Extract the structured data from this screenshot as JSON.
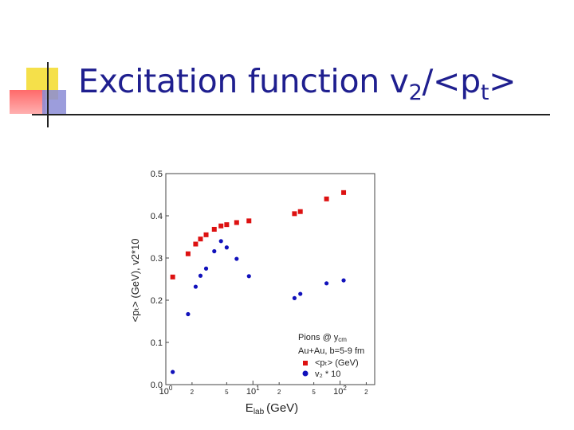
{
  "slide": {
    "title_main": "Excitation function v",
    "title_sub1": "2",
    "title_mid": "/<p",
    "title_sub2": "t",
    "title_end": ">"
  },
  "chart_data": {
    "type": "scatter",
    "x_scale": "log",
    "xlim": [
      1,
      250
    ],
    "ylim": [
      0,
      0.5
    ],
    "grid": false,
    "legend_position": "bottom-right",
    "ylabel": "<pₜ> (GeV), v2*10",
    "xlabel": "E_lab (GeV)",
    "xlabel_main": "E",
    "xlabel_sub": "lab",
    "xlabel_unit": "(GeV)",
    "y_ticks": [
      "0.0",
      "0.1",
      "0.2",
      "0.3",
      "0.4",
      "0.5"
    ],
    "y_tick_values": [
      0,
      0.1,
      0.2,
      0.3,
      0.4,
      0.5
    ],
    "x_ticks": [
      {
        "value": 1,
        "base": "10",
        "exp": "0"
      },
      {
        "value": 2,
        "label": "2"
      },
      {
        "value": 5,
        "label": "5"
      },
      {
        "value": 10,
        "base": "10",
        "exp": "1"
      },
      {
        "value": 20,
        "label": "2"
      },
      {
        "value": 50,
        "label": "5"
      },
      {
        "value": 100,
        "base": "10",
        "exp": "2"
      },
      {
        "value": 200,
        "label": "2"
      }
    ],
    "legend": {
      "title": "Pions @ y",
      "title_sub": "cm",
      "subtitle": "Au+Au, b=5-9 fm",
      "entries": [
        "<pₜ> (GeV)",
        "v₂ * 10"
      ]
    },
    "series": [
      {
        "name": "<pₜ> (GeV)",
        "color": "#dd1111",
        "marker": "square",
        "x": [
          1.2,
          1.8,
          2.2,
          2.5,
          2.9,
          3.6,
          4.3,
          5.0,
          6.5,
          9.0,
          30.0,
          35.0,
          70.0,
          110.0
        ],
        "y": [
          0.255,
          0.31,
          0.333,
          0.345,
          0.355,
          0.368,
          0.376,
          0.379,
          0.384,
          0.388,
          0.405,
          0.41,
          0.44,
          0.455
        ]
      },
      {
        "name": "v₂ * 10",
        "color": "#1111bb",
        "marker": "circle",
        "x": [
          1.2,
          1.8,
          2.2,
          2.5,
          2.9,
          3.6,
          4.3,
          5.0,
          6.5,
          9.0,
          30.0,
          35.0,
          70.0,
          110.0
        ],
        "y": [
          0.03,
          0.167,
          0.232,
          0.258,
          0.275,
          0.316,
          0.34,
          0.325,
          0.298,
          0.257,
          0.205,
          0.215,
          0.24,
          0.247
        ]
      }
    ]
  }
}
